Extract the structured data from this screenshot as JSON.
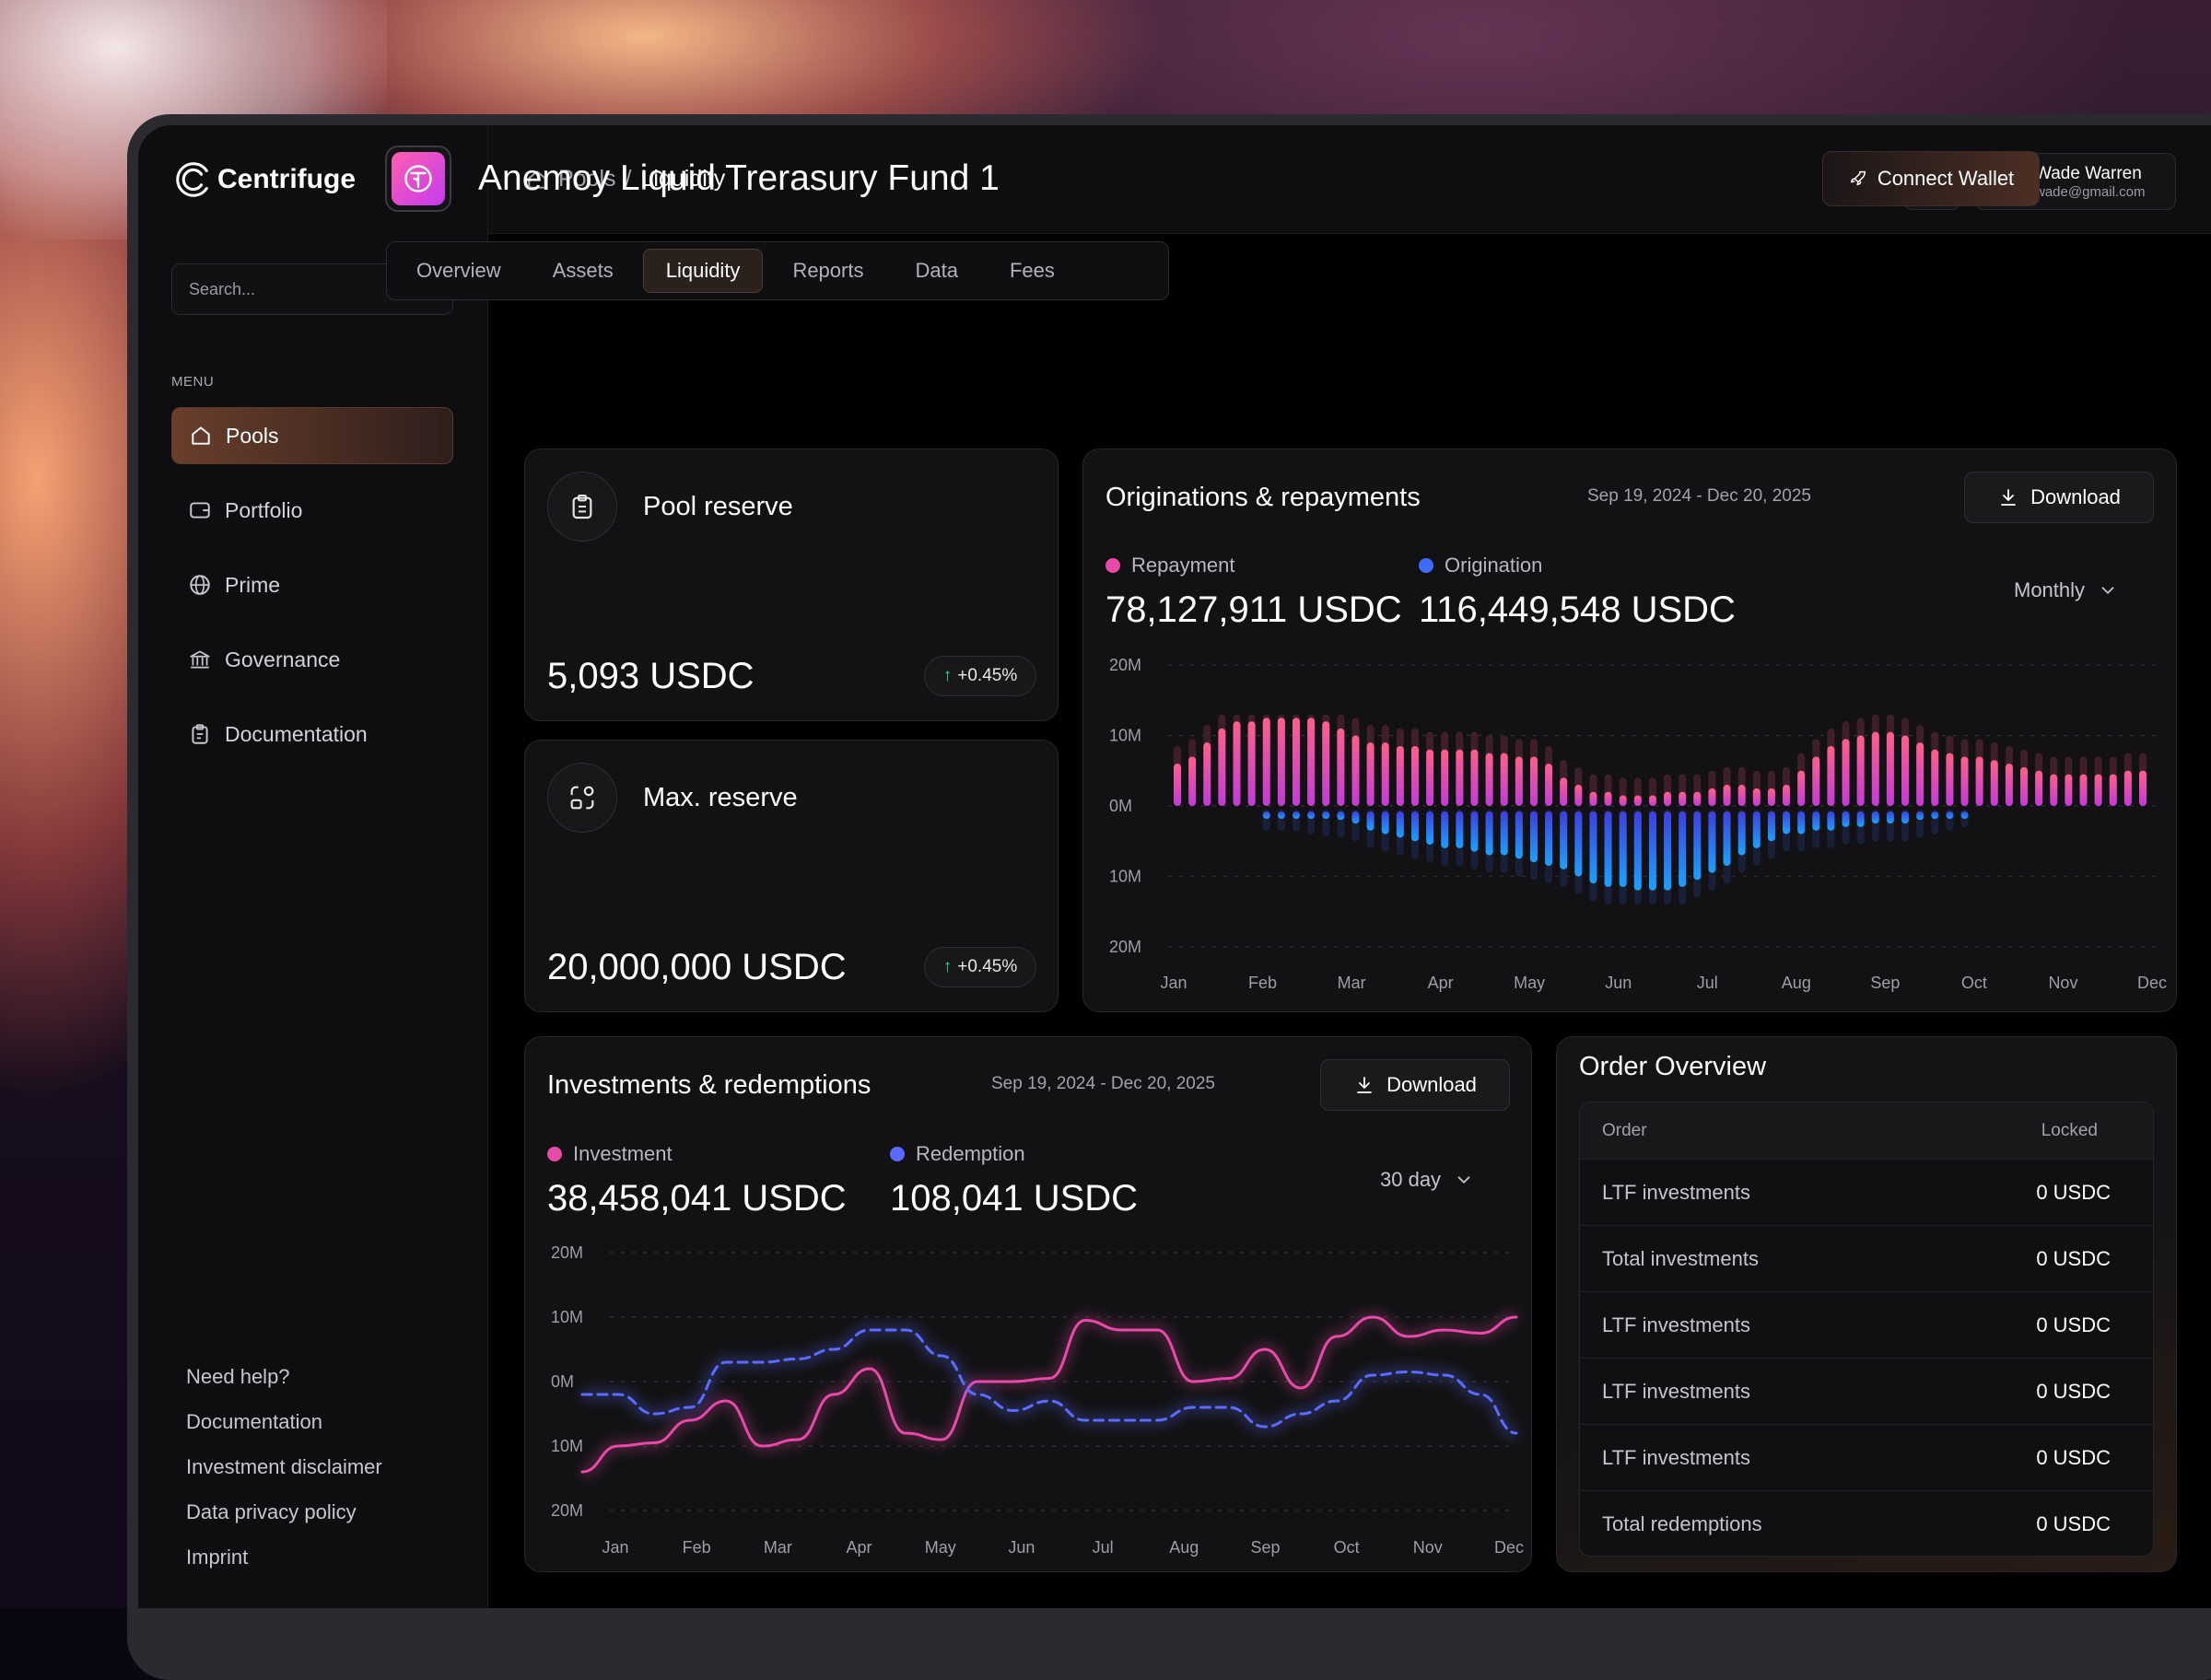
{
  "brand": {
    "name": "Centrifuge"
  },
  "search": {
    "placeholder": "Search..."
  },
  "menu": {
    "label": "MENU",
    "items": [
      {
        "label": "Pools",
        "icon": "home-icon",
        "active": true
      },
      {
        "label": "Portfolio",
        "icon": "wallet-icon"
      },
      {
        "label": "Prime",
        "icon": "globe-icon"
      },
      {
        "label": "Governance",
        "icon": "bank-icon"
      },
      {
        "label": "Documentation",
        "icon": "clipboard-icon"
      }
    ]
  },
  "footer_links": [
    "Need help?",
    "Documentation",
    "Investment disclaimer",
    "Data privacy policy",
    "Imprint"
  ],
  "breadcrumb": {
    "parent": "Pools",
    "separator": "/",
    "current": "Liquidity"
  },
  "user": {
    "name": "Wade Warren",
    "email": "wade@gmail.com"
  },
  "fund": {
    "title": "Anemoy Liquid Trerasury Fund 1"
  },
  "connect_wallet": {
    "label": "Connect Wallet"
  },
  "tabs": [
    {
      "label": "Overview"
    },
    {
      "label": "Assets"
    },
    {
      "label": "Liquidity",
      "active": true
    },
    {
      "label": "Reports"
    },
    {
      "label": "Data"
    },
    {
      "label": "Fees"
    }
  ],
  "pool_reserve": {
    "title": "Pool reserve",
    "value": "5,093 USDC",
    "change": "+0.45%"
  },
  "max_reserve": {
    "title": "Max. reserve",
    "value": "20,000,000 USDC",
    "change": "+0.45%"
  },
  "originations": {
    "title": "Originations & repayments",
    "date_range": "Sep 19, 2024 - Dec 20, 2025",
    "download_label": "Download",
    "period": "Monthly",
    "legend": [
      {
        "name": "Repayment",
        "value": "78,127,911 USDC",
        "color": "#e84aa8"
      },
      {
        "name": "Origination",
        "value": "116,449,548 USDC",
        "color": "#3f6bff"
      }
    ]
  },
  "investments": {
    "title": "Investments & redemptions",
    "date_range": "Sep 19, 2024 - Dec 20, 2025",
    "download_label": "Download",
    "period": "30 day",
    "legend": [
      {
        "name": "Investment",
        "value": "38,458,041 USDC",
        "color": "#e84aa8"
      },
      {
        "name": "Redemption",
        "value": "108,041 USDC",
        "color": "#5b6bff"
      }
    ]
  },
  "order_overview": {
    "title": "Order Overview",
    "columns": [
      "Order",
      "Locked"
    ],
    "rows": [
      {
        "order": "LTF investments",
        "locked": "0 USDC"
      },
      {
        "order": "Total investments",
        "locked": "0 USDC"
      },
      {
        "order": "LTF investments",
        "locked": "0 USDC"
      },
      {
        "order": "LTF investments",
        "locked": "0 USDC"
      },
      {
        "order": "LTF investments",
        "locked": "0 USDC"
      },
      {
        "order": "Total redemptions",
        "locked": "0 USDC"
      }
    ]
  },
  "chart_data": [
    {
      "type": "bar",
      "ylim": [
        -20,
        20
      ],
      "ytick_labels": [
        "20M",
        "10M",
        "0M",
        "10M",
        "20M"
      ],
      "xtick_labels": [
        "Jan",
        "Feb",
        "Mar",
        "Apr",
        "May",
        "Jun",
        "Jul",
        "Aug",
        "Sep",
        "Oct",
        "Nov",
        "Dec"
      ],
      "series": [
        {
          "name": "Repayment",
          "color": "#e84aa8",
          "values": [
            6,
            7,
            9,
            11,
            12,
            12,
            12.5,
            12.5,
            12.5,
            12.5,
            12,
            11,
            10,
            9,
            9,
            8.5,
            8.5,
            8,
            8,
            8,
            8,
            7.5,
            7.5,
            7,
            7,
            6,
            4,
            3,
            2,
            2,
            1.5,
            1.5,
            1.5,
            2,
            2,
            2,
            2.5,
            3,
            3,
            2.5,
            2.5,
            3,
            5,
            7,
            8.5,
            9.5,
            10,
            10.5,
            10.5,
            10,
            9,
            8,
            7.5,
            7,
            7,
            6.5,
            6,
            5.5,
            5,
            4.5,
            4.5,
            4.5,
            4.5,
            4.5,
            5,
            5
          ]
        },
        {
          "name": "Origination",
          "color": "#3f6bff",
          "values": [
            0,
            0,
            0,
            0,
            0,
            0,
            -1,
            -1,
            -1.2,
            -1.5,
            -1.8,
            -2,
            -2.5,
            -3.5,
            -4,
            -4.5,
            -5,
            -5.5,
            -6,
            -6,
            -6.5,
            -7,
            -7,
            -7.5,
            -8,
            -8.5,
            -9,
            -10,
            -11,
            -11.5,
            -11.5,
            -12,
            -12,
            -12,
            -11.5,
            -10.5,
            -9.5,
            -8.5,
            -7,
            -6,
            -5,
            -4,
            -4,
            -3.5,
            -3.5,
            -3,
            -3,
            -2.5,
            -2.5,
            -2.5,
            -2,
            -1.5,
            -1,
            -0.5,
            0,
            0,
            0,
            0,
            0,
            0,
            0,
            0,
            0,
            0,
            0,
            0
          ]
        }
      ]
    },
    {
      "type": "line",
      "ylim": [
        -20,
        20
      ],
      "ytick_labels": [
        "20M",
        "10M",
        "0M",
        "10M",
        "20M"
      ],
      "xtick_labels": [
        "Jan",
        "Feb",
        "Mar",
        "Apr",
        "May",
        "Jun",
        "Jul",
        "Aug",
        "Sep",
        "Oct",
        "Nov",
        "Dec"
      ],
      "series": [
        {
          "name": "Investment",
          "color": "#e84aa8",
          "style": "solid",
          "values": [
            -14,
            -10,
            -9.5,
            -6,
            -3,
            -10,
            -9,
            -2,
            2,
            -8,
            -9,
            0,
            0,
            0.5,
            9.5,
            8,
            8,
            0,
            0.5,
            5,
            -1,
            7,
            10,
            7,
            8,
            7.5,
            10
          ]
        },
        {
          "name": "Redemption",
          "color": "#5b6bff",
          "style": "dashed",
          "values": [
            -2,
            -2,
            -5,
            -4,
            3,
            3,
            3.5,
            5,
            8,
            8,
            4,
            -2,
            -4.5,
            -3,
            -6,
            -6,
            -6,
            -4,
            -4,
            -7,
            -5,
            -3,
            1,
            1.5,
            1,
            -2,
            -8
          ]
        }
      ]
    }
  ]
}
